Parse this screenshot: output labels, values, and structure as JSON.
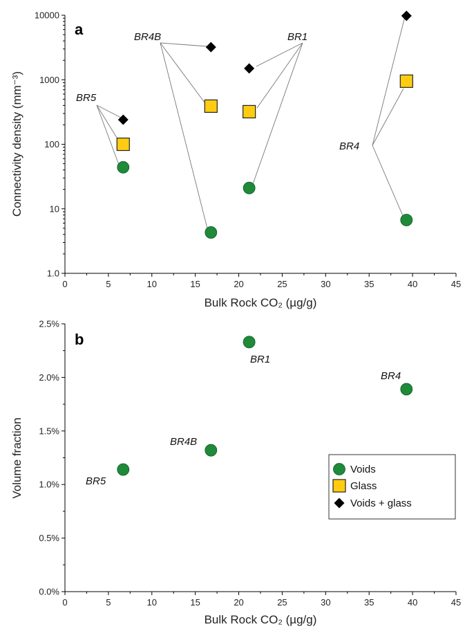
{
  "chart_data": [
    {
      "panel": "a",
      "type": "scatter",
      "xlabel": "Bulk Rock CO₂ (µg/g)",
      "ylabel": "Connectivity density (mm⁻³)",
      "xlim": [
        0,
        45
      ],
      "ylim": [
        1,
        10000
      ],
      "yscale": "log",
      "x_ticks": [
        "0",
        "5",
        "10",
        "15",
        "20",
        "25",
        "30",
        "35",
        "40",
        "45"
      ],
      "y_ticks": [
        "1.0",
        "10",
        "100",
        "1000",
        "10000"
      ],
      "series": [
        {
          "name": "Voids",
          "marker": "circle",
          "color": "#1e8a3a",
          "points": [
            {
              "x": 6.7,
              "y": 44
            },
            {
              "x": 16.8,
              "y": 4.3
            },
            {
              "x": 21.2,
              "y": 21
            },
            {
              "x": 39.3,
              "y": 6.7
            }
          ]
        },
        {
          "name": "Glass",
          "marker": "square",
          "color": "#ffcc11",
          "points": [
            {
              "x": 6.7,
              "y": 100
            },
            {
              "x": 16.8,
              "y": 390
            },
            {
              "x": 21.2,
              "y": 320
            },
            {
              "x": 39.3,
              "y": 950
            }
          ]
        },
        {
          "name": "Voids + glass",
          "marker": "diamond",
          "color": "#000000",
          "points": [
            {
              "x": 6.7,
              "y": 240
            },
            {
              "x": 16.8,
              "y": 3200
            },
            {
              "x": 21.2,
              "y": 1500
            },
            {
              "x": 39.3,
              "y": 9800
            }
          ]
        }
      ],
      "annotations": [
        {
          "text": "BR5",
          "sample_x": 6.7
        },
        {
          "text": "BR4B",
          "sample_x": 16.8
        },
        {
          "text": "BR1",
          "sample_x": 21.2
        },
        {
          "text": "BR4",
          "sample_x": 39.3
        }
      ]
    },
    {
      "panel": "b",
      "type": "scatter",
      "xlabel": "Bulk Rock CO₂ (µg/g)",
      "ylabel": "Volume fraction",
      "xlim": [
        0,
        45
      ],
      "ylim": [
        0,
        0.025
      ],
      "x_ticks": [
        "0",
        "5",
        "10",
        "15",
        "20",
        "25",
        "30",
        "35",
        "40",
        "45"
      ],
      "y_ticks": [
        "0.0%",
        "0.5%",
        "1.0%",
        "1.5%",
        "2.0%",
        "2.5%"
      ],
      "series": [
        {
          "name": "Voids",
          "marker": "circle",
          "color": "#1e8a3a",
          "points": [
            {
              "x": 6.7,
              "y": 0.0114,
              "label": "BR5"
            },
            {
              "x": 16.8,
              "y": 0.0132,
              "label": "BR4B"
            },
            {
              "x": 21.2,
              "y": 0.0233,
              "label": "BR1"
            },
            {
              "x": 39.3,
              "y": 0.0189,
              "label": "BR4"
            }
          ]
        }
      ],
      "legend": {
        "position": "right",
        "items": [
          {
            "label": "Voids",
            "marker": "circle",
            "color": "#1e8a3a"
          },
          {
            "label": "Glass",
            "marker": "square",
            "color": "#ffcc11"
          },
          {
            "label": "Voids + glass",
            "marker": "diamond",
            "color": "#000000"
          }
        ]
      }
    }
  ]
}
